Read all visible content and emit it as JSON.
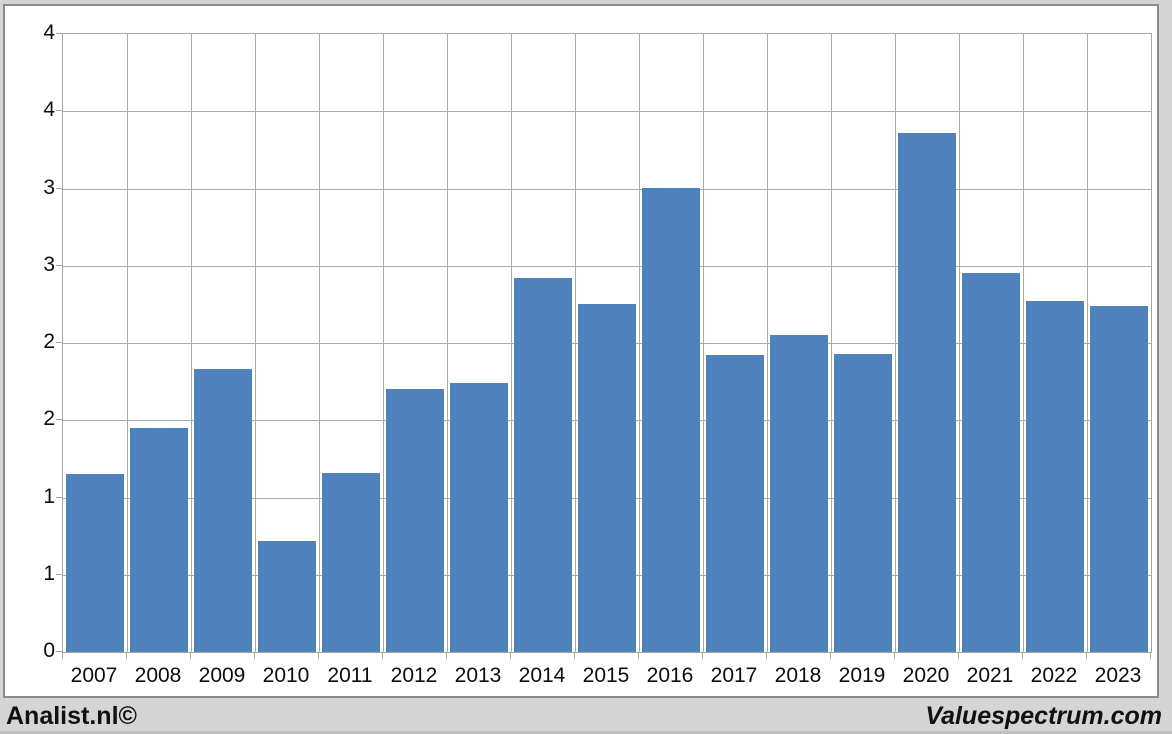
{
  "footer": {
    "left_text": "Analist.nl©",
    "right_text": "Valuespectrum.com"
  },
  "colors": {
    "bar": "#4f81bd",
    "gridline": "#ababab",
    "plot_border": "#a6a6a6",
    "page_background": "#d5d5d5",
    "frame_border": "#8b8b8b"
  },
  "chart_data": {
    "type": "bar",
    "title": "",
    "xlabel": "",
    "ylabel": "",
    "categories": [
      "2007",
      "2008",
      "2009",
      "2010",
      "2011",
      "2012",
      "2013",
      "2014",
      "2015",
      "2016",
      "2017",
      "2018",
      "2019",
      "2020",
      "2021",
      "2022",
      "2023"
    ],
    "values": [
      1.15,
      1.45,
      1.83,
      0.72,
      1.16,
      1.7,
      1.74,
      2.42,
      2.25,
      3.0,
      1.92,
      2.05,
      1.93,
      3.36,
      2.45,
      2.27,
      2.24
    ],
    "ylim": [
      0,
      4
    ],
    "y_tick_step": 0.5,
    "y_tick_labels_top_to_bottom": [
      "4",
      "4",
      "3",
      "3",
      "2",
      "2",
      "1",
      "1",
      "0"
    ],
    "grid": "both",
    "legend": "none"
  }
}
